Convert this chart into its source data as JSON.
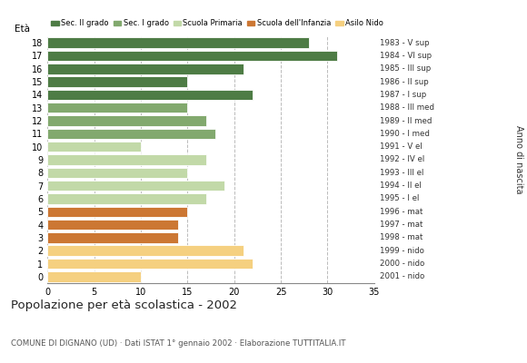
{
  "ages": [
    18,
    17,
    16,
    15,
    14,
    13,
    12,
    11,
    10,
    9,
    8,
    7,
    6,
    5,
    4,
    3,
    2,
    1,
    0
  ],
  "values": [
    28,
    31,
    21,
    15,
    22,
    15,
    17,
    18,
    10,
    17,
    15,
    19,
    17,
    15,
    14,
    14,
    21,
    22,
    10
  ],
  "right_labels": [
    "1983 - V sup",
    "1984 - VI sup",
    "1985 - III sup",
    "1986 - II sup",
    "1987 - I sup",
    "1988 - III med",
    "1989 - II med",
    "1990 - I med",
    "1991 - V el",
    "1992 - IV el",
    "1993 - III el",
    "1994 - II el",
    "1995 - I el",
    "1996 - mat",
    "1997 - mat",
    "1998 - mat",
    "1999 - nido",
    "2000 - nido",
    "2001 - nido"
  ],
  "colors": {
    "Sec. II grado": "#4e7c45",
    "Sec. I grado": "#82a96e",
    "Scuola Primaria": "#c2d9a8",
    "Scuola dell'Infanzia": "#cc7733",
    "Asilo Nido": "#f5d080"
  },
  "age_category": {
    "18": "Sec. II grado",
    "17": "Sec. II grado",
    "16": "Sec. II grado",
    "15": "Sec. II grado",
    "14": "Sec. II grado",
    "13": "Sec. I grado",
    "12": "Sec. I grado",
    "11": "Sec. I grado",
    "10": "Scuola Primaria",
    "9": "Scuola Primaria",
    "8": "Scuola Primaria",
    "7": "Scuola Primaria",
    "6": "Scuola Primaria",
    "5": "Scuola dell'Infanzia",
    "4": "Scuola dell'Infanzia",
    "3": "Scuola dell'Infanzia",
    "2": "Asilo Nido",
    "1": "Asilo Nido",
    "0": "Asilo Nido"
  },
  "xlim": [
    0,
    35
  ],
  "xticks": [
    0,
    5,
    10,
    15,
    20,
    25,
    30,
    35
  ],
  "title": "Popolazione per età scolastica - 2002",
  "subtitle": "COMUNE DI DIGNANO (UD) · Dati ISTAT 1° gennaio 2002 · Elaborazione TUTTITALIA.IT",
  "ylabel": "Età",
  "right_axis_label": "Anno di nascita",
  "background_color": "#ffffff",
  "grid_color": "#bbbbbb"
}
